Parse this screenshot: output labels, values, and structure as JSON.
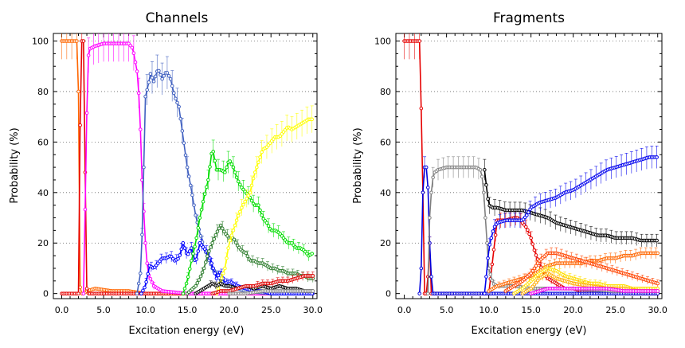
{
  "chart_data": [
    {
      "type": "line",
      "title": "Channels",
      "xlabel": "Excitation energy (eV)",
      "ylabel": "Probability (%)",
      "xlim": [
        -1,
        30.5
      ],
      "ylim": [
        -2,
        103
      ],
      "xticks": [
        "0.0",
        "5.0",
        "10.0",
        "15.0",
        "20.0",
        "25.0",
        "30.0"
      ],
      "yticks": [
        "0",
        "20",
        "40",
        "60",
        "80",
        "100"
      ],
      "grid": "horizontal dotted at each y tick",
      "series": [
        {
          "name": "orange",
          "color": "#ff6600",
          "x": [
            0,
            1,
            1.6,
            1.9,
            2.0,
            2.1,
            2.3,
            2.6,
            3,
            4,
            6,
            8,
            10,
            15,
            20,
            25,
            30
          ],
          "y": [
            100,
            100,
            100,
            100,
            80,
            5,
            0,
            0,
            1,
            2,
            1,
            1,
            0,
            0,
            0,
            0,
            0
          ]
        },
        {
          "name": "red-early",
          "color": "#e60000",
          "x": [
            0,
            1,
            1.5,
            2.0,
            2.3,
            2.6,
            2.8,
            3.0,
            3.2,
            4,
            10,
            15,
            20,
            25,
            30
          ],
          "y": [
            0,
            0,
            0,
            0,
            100,
            100,
            48,
            2,
            0,
            0,
            0,
            0,
            0,
            0,
            0
          ]
        },
        {
          "name": "magenta",
          "color": "#ff00ff",
          "x": [
            2.6,
            2.9,
            3.1,
            3.4,
            4,
            5,
            6,
            7,
            8,
            8.5,
            9,
            9.3,
            9.6,
            10,
            10.3,
            11,
            12,
            15,
            30
          ],
          "y": [
            0,
            50,
            93,
            97,
            98,
            99,
            99,
            99,
            99,
            97,
            88,
            75,
            45,
            20,
            8,
            3,
            1,
            0,
            0
          ]
        },
        {
          "name": "blue-steel",
          "color": "#4060c0",
          "x": [
            9,
            9.5,
            9.8,
            10,
            10.3,
            10.6,
            11,
            11.5,
            12,
            12.5,
            13,
            13.5,
            14,
            14.5,
            15,
            15.5,
            16,
            16.5,
            17,
            17.5,
            18,
            18.5,
            19,
            20,
            21,
            22,
            25,
            30
          ],
          "y": [
            0,
            10,
            50,
            78,
            82,
            87,
            84,
            89,
            85,
            88,
            85,
            78,
            74,
            62,
            50,
            41,
            31,
            24,
            18,
            14,
            10,
            8,
            5,
            3,
            2,
            1,
            0,
            0
          ]
        },
        {
          "name": "blue",
          "color": "#0000ff",
          "x": [
            9.5,
            10,
            10.5,
            11,
            11.5,
            12,
            12.5,
            13,
            13.5,
            14,
            14.5,
            15,
            15.5,
            16,
            16.5,
            17,
            17.5,
            18,
            18.5,
            19,
            19.5,
            20,
            21,
            22,
            23,
            24,
            25,
            30
          ],
          "y": [
            0,
            3,
            11,
            10,
            12,
            14,
            14,
            15,
            13,
            14,
            20,
            15,
            18,
            12,
            20,
            18,
            16,
            11,
            6,
            9,
            4,
            5,
            3,
            2,
            1,
            1,
            0,
            0
          ]
        },
        {
          "name": "green",
          "color": "#00dd00",
          "x": [
            14.5,
            15,
            15.5,
            16,
            16.5,
            17,
            17.5,
            18,
            18.5,
            19,
            19.5,
            20,
            20.5,
            21,
            21.5,
            22,
            22.5,
            23,
            23.5,
            24,
            24.5,
            25,
            25.5,
            26,
            26.5,
            27,
            27.5,
            28,
            28.5,
            29,
            29.5,
            30
          ],
          "y": [
            0,
            5,
            13,
            20,
            30,
            38,
            45,
            58,
            49,
            49,
            48,
            53,
            50,
            45,
            42,
            40,
            38,
            35,
            35,
            30,
            28,
            25,
            25,
            24,
            22,
            20,
            20,
            18,
            18,
            17,
            15,
            16
          ]
        },
        {
          "name": "dark-green",
          "color": "#2e7d2e",
          "x": [
            15,
            16,
            16.5,
            17,
            17.5,
            18,
            18.5,
            19,
            19.5,
            20,
            20.5,
            21,
            21.5,
            22,
            22.5,
            23,
            23.5,
            24,
            24.5,
            25,
            25.5,
            26,
            26.5,
            27,
            27.5,
            28,
            28.5,
            29,
            29.5,
            30
          ],
          "y": [
            0,
            3,
            6,
            10,
            16,
            20,
            24,
            27,
            24,
            22,
            22,
            19,
            17,
            16,
            13,
            13,
            12,
            12,
            11,
            10,
            10,
            9,
            9,
            8,
            8,
            8,
            7,
            7,
            6,
            6
          ]
        },
        {
          "name": "yellow",
          "color": "#ffff00",
          "x": [
            18.5,
            19,
            19.5,
            20,
            20.5,
            21,
            21.5,
            22,
            22.5,
            23,
            23.5,
            24,
            24.5,
            25,
            25.5,
            26,
            26.5,
            27,
            27.5,
            28,
            28.5,
            29,
            29.5,
            30
          ],
          "y": [
            0,
            5,
            10,
            20,
            25,
            30,
            34,
            37,
            40,
            47,
            52,
            57,
            58,
            60,
            62,
            62,
            64,
            66,
            65,
            66,
            67,
            68,
            69,
            69
          ]
        },
        {
          "name": "black",
          "color": "#000000",
          "x": [
            16,
            17,
            17.5,
            18,
            18.5,
            19,
            19.5,
            20,
            21,
            22,
            23,
            24,
            25,
            26,
            27,
            28,
            29,
            30
          ],
          "y": [
            0,
            2,
            3,
            4,
            3,
            4,
            3,
            3,
            2,
            3,
            2,
            3,
            2,
            3,
            2,
            2,
            1,
            1
          ]
        },
        {
          "name": "red",
          "color": "#dd0000",
          "x": [
            18,
            19,
            20,
            21,
            22,
            23,
            24,
            25,
            26,
            27,
            28,
            29,
            30
          ],
          "y": [
            0,
            1,
            1,
            2,
            3,
            3,
            4,
            4,
            5,
            5,
            6,
            7,
            7
          ]
        },
        {
          "name": "gray",
          "color": "#888888",
          "x": [
            20,
            22,
            24,
            26,
            28,
            30
          ],
          "y": [
            0,
            0,
            1,
            1,
            1,
            1
          ]
        }
      ]
    },
    {
      "type": "line",
      "title": "Fragments",
      "xlabel": "Excitation energy (eV)",
      "ylabel": "Probability (%)",
      "xlim": [
        -1,
        30.5
      ],
      "ylim": [
        -2,
        103
      ],
      "xticks": [
        "0.0",
        "5.0",
        "10.0",
        "15.0",
        "20.0",
        "25.0",
        "30.0"
      ],
      "yticks": [
        "0",
        "20",
        "40",
        "60",
        "80",
        "100"
      ],
      "grid": "horizontal dotted at each y tick",
      "series": [
        {
          "name": "red",
          "color": "#e60000",
          "x": [
            0,
            1,
            1.5,
            1.8,
            2.1,
            2.4,
            2.7,
            3.0,
            3.2,
            4,
            10,
            11,
            12,
            13,
            13.5,
            14,
            14.5,
            15,
            15.5,
            16,
            16.5,
            17,
            17.5,
            18,
            18.5,
            19,
            20,
            21,
            22,
            24,
            26,
            28,
            30
          ],
          "y": [
            100,
            100,
            100,
            100,
            60,
            0,
            0,
            20,
            0,
            0,
            0,
            29,
            29,
            30,
            30,
            28,
            26,
            22,
            16,
            12,
            8,
            6,
            5,
            4,
            3,
            2,
            2,
            1,
            1,
            1,
            0,
            0,
            0
          ]
        },
        {
          "name": "blue-early",
          "color": "#0000dd",
          "x": [
            1.8,
            2.0,
            2.2,
            2.4,
            2.6,
            2.8,
            3.0,
            3.3,
            4,
            30
          ],
          "y": [
            0,
            10,
            40,
            50,
            50,
            42,
            20,
            0,
            0,
            0
          ]
        },
        {
          "name": "gray",
          "color": "#808080",
          "x": [
            2.8,
            3.0,
            3.3,
            3.6,
            4,
            5,
            6,
            7,
            8,
            8.5,
            9,
            9.3,
            9.6,
            10,
            10.5,
            11,
            12,
            13,
            15,
            20,
            25,
            30
          ],
          "y": [
            0,
            30,
            45,
            48,
            49,
            50,
            50,
            50,
            50,
            50,
            49,
            45,
            30,
            10,
            4,
            3,
            3,
            3,
            2,
            2,
            1,
            1
          ]
        },
        {
          "name": "black",
          "color": "#000000",
          "x": [
            9.5,
            9.8,
            10,
            10.5,
            11,
            12,
            13,
            14,
            15,
            16,
            17,
            18,
            19,
            20,
            21,
            22,
            23,
            24,
            25,
            26,
            27,
            28,
            29,
            30
          ],
          "y": [
            49,
            40,
            35,
            34,
            34,
            33,
            33,
            33,
            32,
            31,
            30,
            28,
            27,
            26,
            25,
            24,
            23,
            23,
            22,
            22,
            22,
            21,
            21,
            21
          ]
        },
        {
          "name": "blue",
          "color": "#0000ee",
          "x": [
            9.5,
            9.8,
            10,
            10.3,
            10.6,
            11,
            12,
            13,
            14,
            14.5,
            15,
            16,
            17,
            18,
            19,
            20,
            21,
            22,
            23,
            24,
            25,
            26,
            27,
            28,
            29,
            30
          ],
          "y": [
            0,
            10,
            18,
            22,
            26,
            28,
            29,
            29,
            29,
            31,
            34,
            36,
            37,
            38,
            40,
            41,
            43,
            45,
            47,
            49,
            50,
            51,
            52,
            53,
            54,
            54
          ]
        },
        {
          "name": "orange",
          "color": "#ff6600",
          "x": [
            10,
            11,
            12,
            13,
            14,
            15,
            16,
            17,
            18,
            19,
            20,
            21,
            22,
            23,
            24,
            25,
            26,
            27,
            28,
            29,
            30
          ],
          "y": [
            1,
            3,
            4,
            5,
            6,
            7,
            9,
            11,
            12,
            12,
            12,
            12,
            13,
            13,
            14,
            14,
            15,
            15,
            16,
            16,
            16
          ]
        },
        {
          "name": "orange-dark",
          "color": "#ff4400",
          "x": [
            12,
            13,
            14,
            15,
            16,
            17,
            18,
            19,
            20,
            21,
            22,
            23,
            24,
            25,
            26,
            27,
            28,
            29,
            30
          ],
          "y": [
            1,
            3,
            5,
            8,
            13,
            16,
            16,
            15,
            14,
            13,
            12,
            11,
            10,
            9,
            8,
            7,
            6,
            5,
            4
          ]
        },
        {
          "name": "yellow",
          "color": "#ffdd00",
          "x": [
            13,
            14,
            15,
            16,
            17,
            18,
            19,
            20,
            21,
            22,
            23,
            24,
            25,
            26,
            27,
            28,
            29,
            30
          ],
          "y": [
            0,
            2,
            5,
            8,
            10,
            9,
            7,
            6,
            5,
            4,
            4,
            3,
            3,
            3,
            2,
            2,
            2,
            2
          ]
        },
        {
          "name": "orange-light",
          "color": "#ffaa00",
          "x": [
            14,
            15,
            16,
            17,
            18,
            19,
            20,
            22,
            24,
            26,
            28,
            30
          ],
          "y": [
            0,
            2,
            6,
            8,
            6,
            5,
            4,
            3,
            2,
            2,
            1,
            1
          ]
        },
        {
          "name": "magenta",
          "color": "#ee00ee",
          "x": [
            15,
            16,
            17,
            18,
            19,
            20,
            22,
            24,
            26,
            28,
            30
          ],
          "y": [
            0,
            1,
            2,
            2,
            2,
            2,
            2,
            2,
            1,
            1,
            1
          ]
        }
      ]
    }
  ]
}
